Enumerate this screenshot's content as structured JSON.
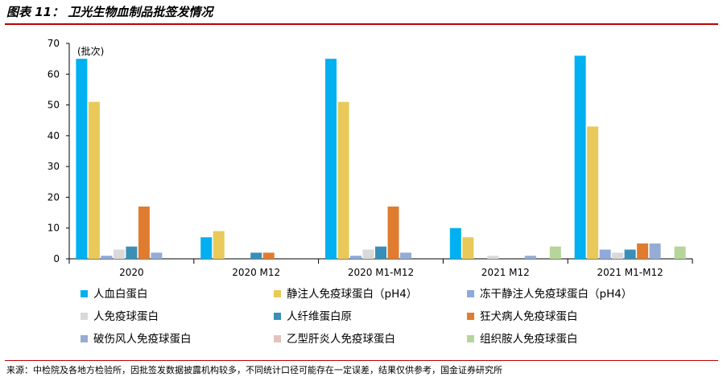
{
  "title": "图表 11： 卫光生物血制品批签发情况",
  "source": "来源：中检院及各地方检验所，因批签发数据披露机构较多，不同统计口径可能存在一定误差，结果仅供参考，国金证券研究所",
  "chart_data": {
    "type": "bar",
    "unit_label": "(批次)",
    "ylim": [
      0,
      70
    ],
    "yticks": [
      0,
      10,
      20,
      30,
      40,
      50,
      60,
      70
    ],
    "categories": [
      "2020",
      "2020 M12",
      "2020 M1-M12",
      "2021 M12",
      "2021 M1-M12"
    ],
    "legend_position": "bottom",
    "series": [
      {
        "name": "人血白蛋白",
        "color": "#00b0f0",
        "values": [
          65,
          7,
          65,
          10,
          66
        ]
      },
      {
        "name": "静注人免疫球蛋白（pH4）",
        "color": "#e8c95a",
        "values": [
          51,
          9,
          51,
          7,
          43
        ]
      },
      {
        "name": "冻干静注人免疫球蛋白（pH4）",
        "color": "#8fa9dc",
        "values": [
          1,
          0,
          1,
          0,
          3
        ]
      },
      {
        "name": "人免疫球蛋白",
        "color": "#d9d9d9",
        "values": [
          3,
          0,
          3,
          1,
          2
        ]
      },
      {
        "name": "人纤维蛋白原",
        "color": "#3a8fb7",
        "values": [
          4,
          2,
          4,
          0,
          3
        ]
      },
      {
        "name": "狂犬病人免疫球蛋白",
        "color": "#e07c2f",
        "values": [
          17,
          2,
          17,
          0,
          5
        ]
      },
      {
        "name": "破伤风人免疫球蛋白",
        "color": "#95acd6",
        "values": [
          2,
          0,
          2,
          1,
          5
        ]
      },
      {
        "name": "乙型肝炎人免疫球蛋白",
        "color": "#e2c4bd",
        "values": [
          0,
          0,
          0,
          0,
          0
        ]
      },
      {
        "name": "组织胺人免疫球蛋白",
        "color": "#b5d59a",
        "values": [
          0,
          0,
          0,
          4,
          4
        ]
      }
    ]
  }
}
